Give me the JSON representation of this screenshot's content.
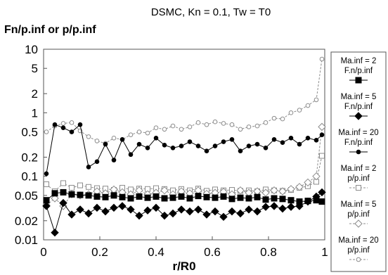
{
  "chart_data": {
    "type": "line",
    "title": "DSMC, Kn = 0.1, Tw = T0",
    "xlabel": "r/R0",
    "ylabel": "Fn/p.inf or p/p.inf",
    "xlim": [
      0,
      1
    ],
    "ylim": [
      0.01,
      10
    ],
    "yscale": "log",
    "grid": false,
    "legend_position": "right",
    "x_ticks": [
      0,
      0.2,
      0.4,
      0.6,
      0.8,
      1
    ],
    "x_tick_labels": [
      "0",
      "0.2",
      "0.4",
      "0.6",
      "0.8",
      "1"
    ],
    "y_ticks": [
      0.01,
      0.02,
      0.05,
      0.1,
      0.2,
      0.5,
      1,
      2,
      5,
      10
    ],
    "y_tick_labels": [
      "0.01",
      "0.02",
      "0.05",
      "0.1",
      "0.2",
      "0.5",
      "1",
      "2",
      "5",
      "10"
    ],
    "x": [
      0.01,
      0.04,
      0.07,
      0.1,
      0.13,
      0.16,
      0.19,
      0.22,
      0.25,
      0.28,
      0.31,
      0.34,
      0.37,
      0.4,
      0.43,
      0.46,
      0.49,
      0.52,
      0.55,
      0.58,
      0.61,
      0.64,
      0.67,
      0.7,
      0.73,
      0.76,
      0.79,
      0.82,
      0.85,
      0.88,
      0.91,
      0.94,
      0.97,
      0.99
    ],
    "series": [
      {
        "name": "Ma.inf = 2\nF.n/p.inf",
        "marker": "square-filled",
        "line": "solid",
        "color": "#000000",
        "values": [
          0.042,
          0.054,
          0.056,
          0.052,
          0.051,
          0.05,
          0.048,
          0.047,
          0.05,
          0.047,
          0.045,
          0.048,
          0.046,
          0.048,
          0.045,
          0.046,
          0.048,
          0.045,
          0.049,
          0.047,
          0.046,
          0.048,
          0.044,
          0.046,
          0.045,
          0.047,
          0.043,
          0.045,
          0.044,
          0.042,
          0.04,
          0.041,
          0.042,
          0.04
        ]
      },
      {
        "name": "Ma.inf = 5\nF.n/p.inf",
        "marker": "diamond-filled",
        "line": "solid",
        "color": "#000000",
        "values": [
          0.034,
          0.013,
          0.038,
          0.025,
          0.03,
          0.026,
          0.032,
          0.028,
          0.032,
          0.034,
          0.03,
          0.024,
          0.029,
          0.032,
          0.024,
          0.026,
          0.03,
          0.028,
          0.03,
          0.025,
          0.028,
          0.023,
          0.028,
          0.026,
          0.03,
          0.028,
          0.033,
          0.034,
          0.031,
          0.033,
          0.034,
          0.04,
          0.048,
          0.056
        ]
      },
      {
        "name": "Ma.inf = 20\nF.n/p.inf",
        "marker": "circle-filled",
        "line": "solid",
        "color": "#000000",
        "values": [
          0.11,
          0.65,
          0.58,
          0.5,
          0.65,
          0.14,
          0.17,
          0.32,
          0.18,
          0.38,
          0.22,
          0.32,
          0.28,
          0.4,
          0.31,
          0.28,
          0.3,
          0.35,
          0.3,
          0.25,
          0.3,
          0.35,
          0.38,
          0.25,
          0.3,
          0.32,
          0.28,
          0.38,
          0.34,
          0.4,
          0.32,
          0.4,
          0.37,
          0.45
        ]
      },
      {
        "name": "Ma.inf = 2\np/p.inf",
        "marker": "square-open",
        "line": "dashed",
        "color": "#8c8c8c",
        "values": [
          0.075,
          0.058,
          0.078,
          0.066,
          0.072,
          0.068,
          0.065,
          0.064,
          0.061,
          0.066,
          0.062,
          0.064,
          0.063,
          0.065,
          0.063,
          0.06,
          0.063,
          0.06,
          0.064,
          0.059,
          0.062,
          0.06,
          0.061,
          0.059,
          0.06,
          0.058,
          0.062,
          0.06,
          0.059,
          0.061,
          0.066,
          0.07,
          0.082,
          0.21
        ]
      },
      {
        "name": "Ma.inf = 5\np/p.inf",
        "marker": "diamond-open",
        "line": "dashed",
        "color": "#8c8c8c",
        "values": [
          0.035,
          0.045,
          0.034,
          0.052,
          0.05,
          0.052,
          0.058,
          0.054,
          0.062,
          0.056,
          0.052,
          0.06,
          0.052,
          0.055,
          0.06,
          0.052,
          0.058,
          0.054,
          0.06,
          0.053,
          0.055,
          0.057,
          0.052,
          0.06,
          0.055,
          0.058,
          0.055,
          0.06,
          0.058,
          0.063,
          0.068,
          0.08,
          0.1,
          0.6
        ]
      },
      {
        "name": "Ma.inf = 20\np/p.inf",
        "marker": "circle-open",
        "line": "dashed",
        "color": "#8c8c8c",
        "values": [
          0.5,
          0.62,
          0.68,
          0.7,
          0.52,
          0.42,
          0.36,
          0.33,
          0.4,
          0.38,
          0.45,
          0.5,
          0.48,
          0.58,
          0.55,
          0.62,
          0.55,
          0.6,
          0.7,
          0.65,
          0.72,
          0.68,
          0.65,
          0.55,
          0.6,
          0.62,
          0.7,
          0.82,
          0.8,
          1.0,
          1.1,
          1.3,
          1.6,
          7.0
        ]
      }
    ]
  }
}
